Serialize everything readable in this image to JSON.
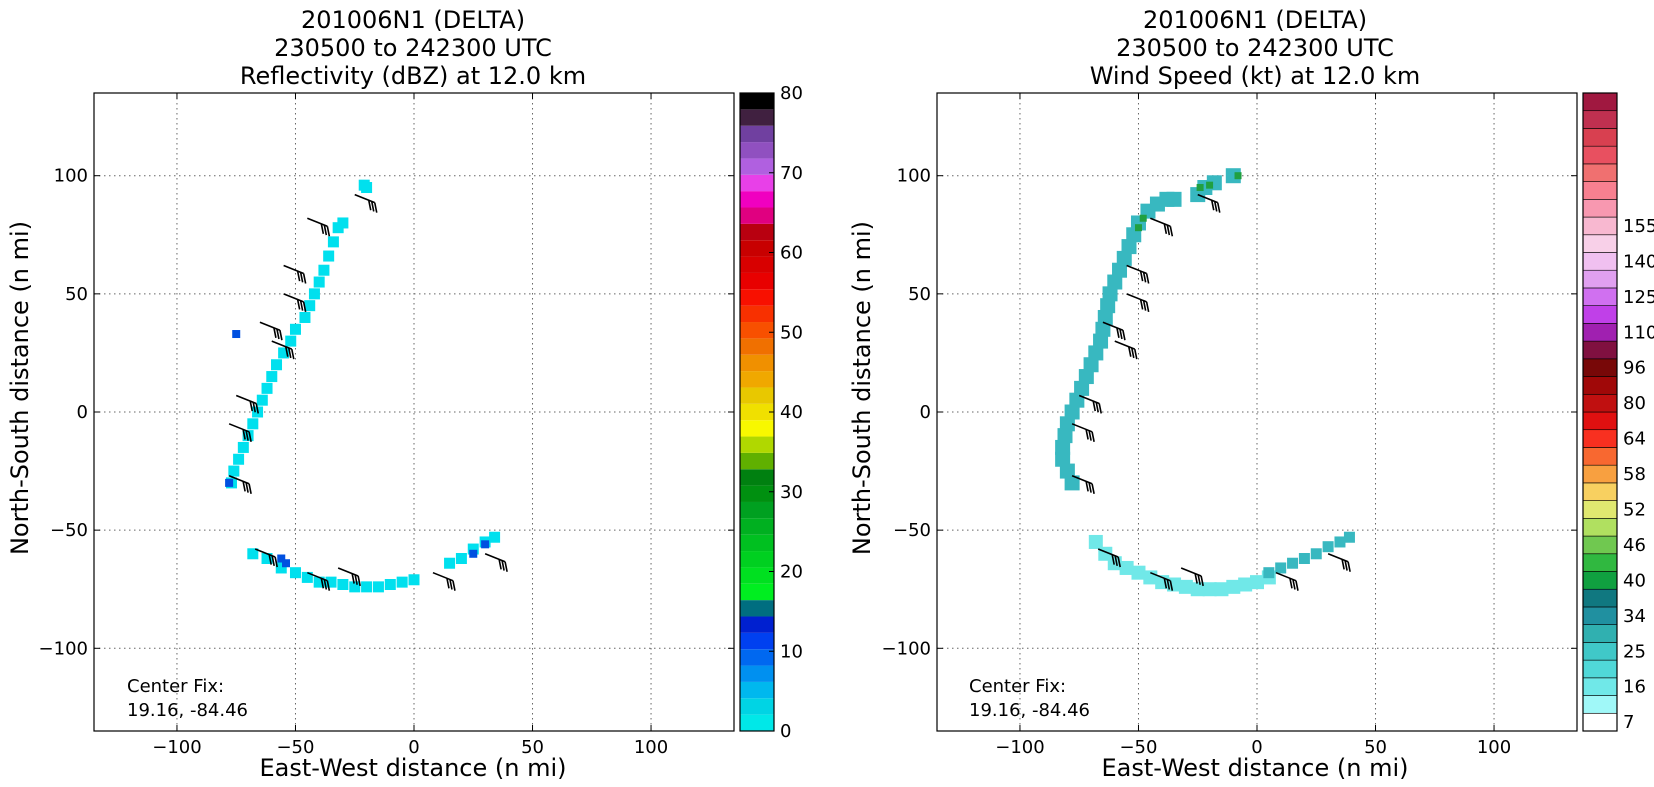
{
  "chart_data": [
    {
      "type": "heatmap",
      "title_lines": [
        "201006N1 (DELTA)",
        "230500 to 242300 UTC",
        "Reflectivity (dBZ) at 12.0 km"
      ],
      "xlabel": "East-West distance (n mi)",
      "ylabel": "North-South distance (n mi)",
      "xlim": [
        -135,
        135
      ],
      "ylim": [
        -135,
        135
      ],
      "xticks": [
        -100,
        -50,
        0,
        50,
        100
      ],
      "yticks": [
        -100,
        -50,
        0,
        50,
        100
      ],
      "xtick_labels": [
        "−100",
        "−50",
        "0",
        "50",
        "100"
      ],
      "ytick_labels": [
        "−100",
        "−50",
        "0",
        "50",
        "100"
      ],
      "grid": true,
      "annotation": [
        "Center Fix:",
        "19.16, -84.46"
      ],
      "colorbar": {
        "min": 0,
        "max": 80,
        "ticks": [
          0,
          10,
          20,
          30,
          40,
          50,
          60,
          70,
          80
        ],
        "tick_labels": [
          "0",
          "10",
          "20",
          "30",
          "40",
          "50",
          "60",
          "70",
          "80"
        ],
        "colors": [
          "#00e8e8",
          "#00d4e4",
          "#00b8ee",
          "#0090f0",
          "#0068f0",
          "#0040f0",
          "#0020d0",
          "#006e80",
          "#00ee20",
          "#00e020",
          "#00d020",
          "#00c020",
          "#00b020",
          "#00a020",
          "#009010",
          "#008010",
          "#60b000",
          "#b0d800",
          "#f8f800",
          "#f0e000",
          "#e8c800",
          "#f0a800",
          "#f09000",
          "#f07000",
          "#f85000",
          "#f83000",
          "#f81000",
          "#e80000",
          "#d80000",
          "#c80000",
          "#b80010",
          "#e00080",
          "#f000c0",
          "#e840e8",
          "#b060e0",
          "#9050c0",
          "#7040a0",
          "#402040",
          "#000000"
        ]
      },
      "field_color": "#00e0ee",
      "field_points": [
        [
          -21,
          96
        ],
        [
          -20,
          95
        ],
        [
          -30,
          80
        ],
        [
          -32,
          78
        ],
        [
          -34,
          72
        ],
        [
          -36,
          66
        ],
        [
          -38,
          60
        ],
        [
          -40,
          55
        ],
        [
          -42,
          50
        ],
        [
          -44,
          45
        ],
        [
          -46,
          40
        ],
        [
          -50,
          35
        ],
        [
          -52,
          30
        ],
        [
          -55,
          25
        ],
        [
          -58,
          20
        ],
        [
          -60,
          15
        ],
        [
          -62,
          10
        ],
        [
          -64,
          5
        ],
        [
          -66,
          0
        ],
        [
          -68,
          -5
        ],
        [
          -70,
          -10
        ],
        [
          -72,
          -15
        ],
        [
          -74,
          -20
        ],
        [
          -76,
          -25
        ],
        [
          -77,
          -30
        ],
        [
          -68,
          -60
        ],
        [
          -62,
          -62
        ],
        [
          -56,
          -66
        ],
        [
          -50,
          -68
        ],
        [
          -45,
          -70
        ],
        [
          -40,
          -72
        ],
        [
          -35,
          -72
        ],
        [
          -30,
          -73
        ],
        [
          -25,
          -74
        ],
        [
          -20,
          -74
        ],
        [
          -15,
          -74
        ],
        [
          -10,
          -73
        ],
        [
          -5,
          -72
        ],
        [
          0,
          -71
        ],
        [
          15,
          -64
        ],
        [
          20,
          -62
        ],
        [
          25,
          -58
        ],
        [
          30,
          -55
        ],
        [
          34,
          -53
        ]
      ],
      "field_dark_points": [
        [
          -78,
          -30
        ],
        [
          -56,
          -62
        ],
        [
          -54,
          -64
        ],
        [
          -75,
          33
        ],
        [
          25,
          -60
        ],
        [
          30,
          -56
        ]
      ],
      "field_dark_color": "#0050e0"
    },
    {
      "type": "heatmap",
      "title_lines": [
        "201006N1 (DELTA)",
        "230500 to 242300 UTC",
        "Wind Speed (kt) at 12.0 km"
      ],
      "xlabel": "East-West distance (n mi)",
      "ylabel": "North-South distance (n mi)",
      "xlim": [
        -135,
        135
      ],
      "ylim": [
        -135,
        135
      ],
      "xticks": [
        -100,
        -50,
        0,
        50,
        100
      ],
      "yticks": [
        -100,
        -50,
        0,
        50,
        100
      ],
      "xtick_labels": [
        "−100",
        "−50",
        "0",
        "50",
        "100"
      ],
      "ytick_labels": [
        "−100",
        "−50",
        "0",
        "50",
        "100"
      ],
      "grid": true,
      "annotation": [
        "Center Fix:",
        "19.16, -84.46"
      ],
      "colorbar": {
        "tick_labels": [
          "7",
          "16",
          "25",
          "34",
          "40",
          "46",
          "52",
          "58",
          "64",
          "80",
          "96",
          "110",
          "125",
          "140",
          "155"
        ],
        "tick_bins": [
          0,
          2,
          4,
          6,
          8,
          10,
          12,
          14,
          16,
          18,
          20,
          22,
          24,
          26,
          28
        ],
        "colors": [
          "#ffffff",
          "#a0f8f8",
          "#70e8e8",
          "#50d8d8",
          "#40c8c8",
          "#30b0b0",
          "#2090a0",
          "#107880",
          "#10a040",
          "#30b840",
          "#70c850",
          "#b0e060",
          "#e0e870",
          "#f8d060",
          "#f8a040",
          "#f86830",
          "#f83020",
          "#e01010",
          "#c01010",
          "#a00808",
          "#780808",
          "#801040",
          "#a020b0",
          "#c040e8",
          "#d070f0",
          "#e0a0f0",
          "#f0c0f0",
          "#f8d0e8",
          "#f8b8d0",
          "#f898b0",
          "#f88090",
          "#f07070",
          "#e85060",
          "#d84050",
          "#c03050",
          "#a01840"
        ]
      },
      "field_color": "#38b8c0",
      "field_points": [
        [
          -50,
          80
        ],
        [
          -46,
          85
        ],
        [
          -42,
          88
        ],
        [
          -38,
          90
        ],
        [
          -35,
          90
        ],
        [
          -25,
          92
        ],
        [
          -22,
          95
        ],
        [
          -18,
          97
        ],
        [
          -10,
          100
        ],
        [
          -52,
          75
        ],
        [
          -54,
          70
        ],
        [
          -56,
          65
        ],
        [
          -58,
          60
        ],
        [
          -60,
          55
        ],
        [
          -62,
          50
        ],
        [
          -63,
          45
        ],
        [
          -64,
          40
        ],
        [
          -65,
          35
        ],
        [
          -66,
          30
        ],
        [
          -68,
          25
        ],
        [
          -70,
          20
        ],
        [
          -72,
          15
        ],
        [
          -74,
          10
        ],
        [
          -76,
          5
        ],
        [
          -78,
          0
        ],
        [
          -80,
          -5
        ],
        [
          -81,
          -10
        ],
        [
          -82,
          -15
        ],
        [
          -82,
          -20
        ],
        [
          -80,
          -25
        ],
        [
          -78,
          -30
        ]
      ],
      "field_light_color": "#70e8e8",
      "field_light_points": [
        [
          -68,
          -55
        ],
        [
          -64,
          -60
        ],
        [
          -60,
          -64
        ],
        [
          -55,
          -66
        ],
        [
          -50,
          -68
        ],
        [
          -45,
          -70
        ],
        [
          -40,
          -72
        ],
        [
          -35,
          -73
        ],
        [
          -30,
          -74
        ],
        [
          -25,
          -75
        ],
        [
          -20,
          -75
        ],
        [
          -15,
          -75
        ],
        [
          -10,
          -74
        ],
        [
          -5,
          -73
        ],
        [
          0,
          -72
        ],
        [
          5,
          -70
        ]
      ],
      "field_teal_points": [
        [
          5,
          -68
        ],
        [
          10,
          -66
        ],
        [
          15,
          -64
        ],
        [
          20,
          -62
        ],
        [
          25,
          -60
        ],
        [
          30,
          -57
        ],
        [
          35,
          -55
        ],
        [
          39,
          -53
        ]
      ],
      "field_green_color": "#20a040",
      "field_green_points": [
        [
          -48,
          82
        ],
        [
          -50,
          78
        ],
        [
          -24,
          95
        ],
        [
          -20,
          96
        ],
        [
          -8,
          100
        ]
      ]
    }
  ]
}
